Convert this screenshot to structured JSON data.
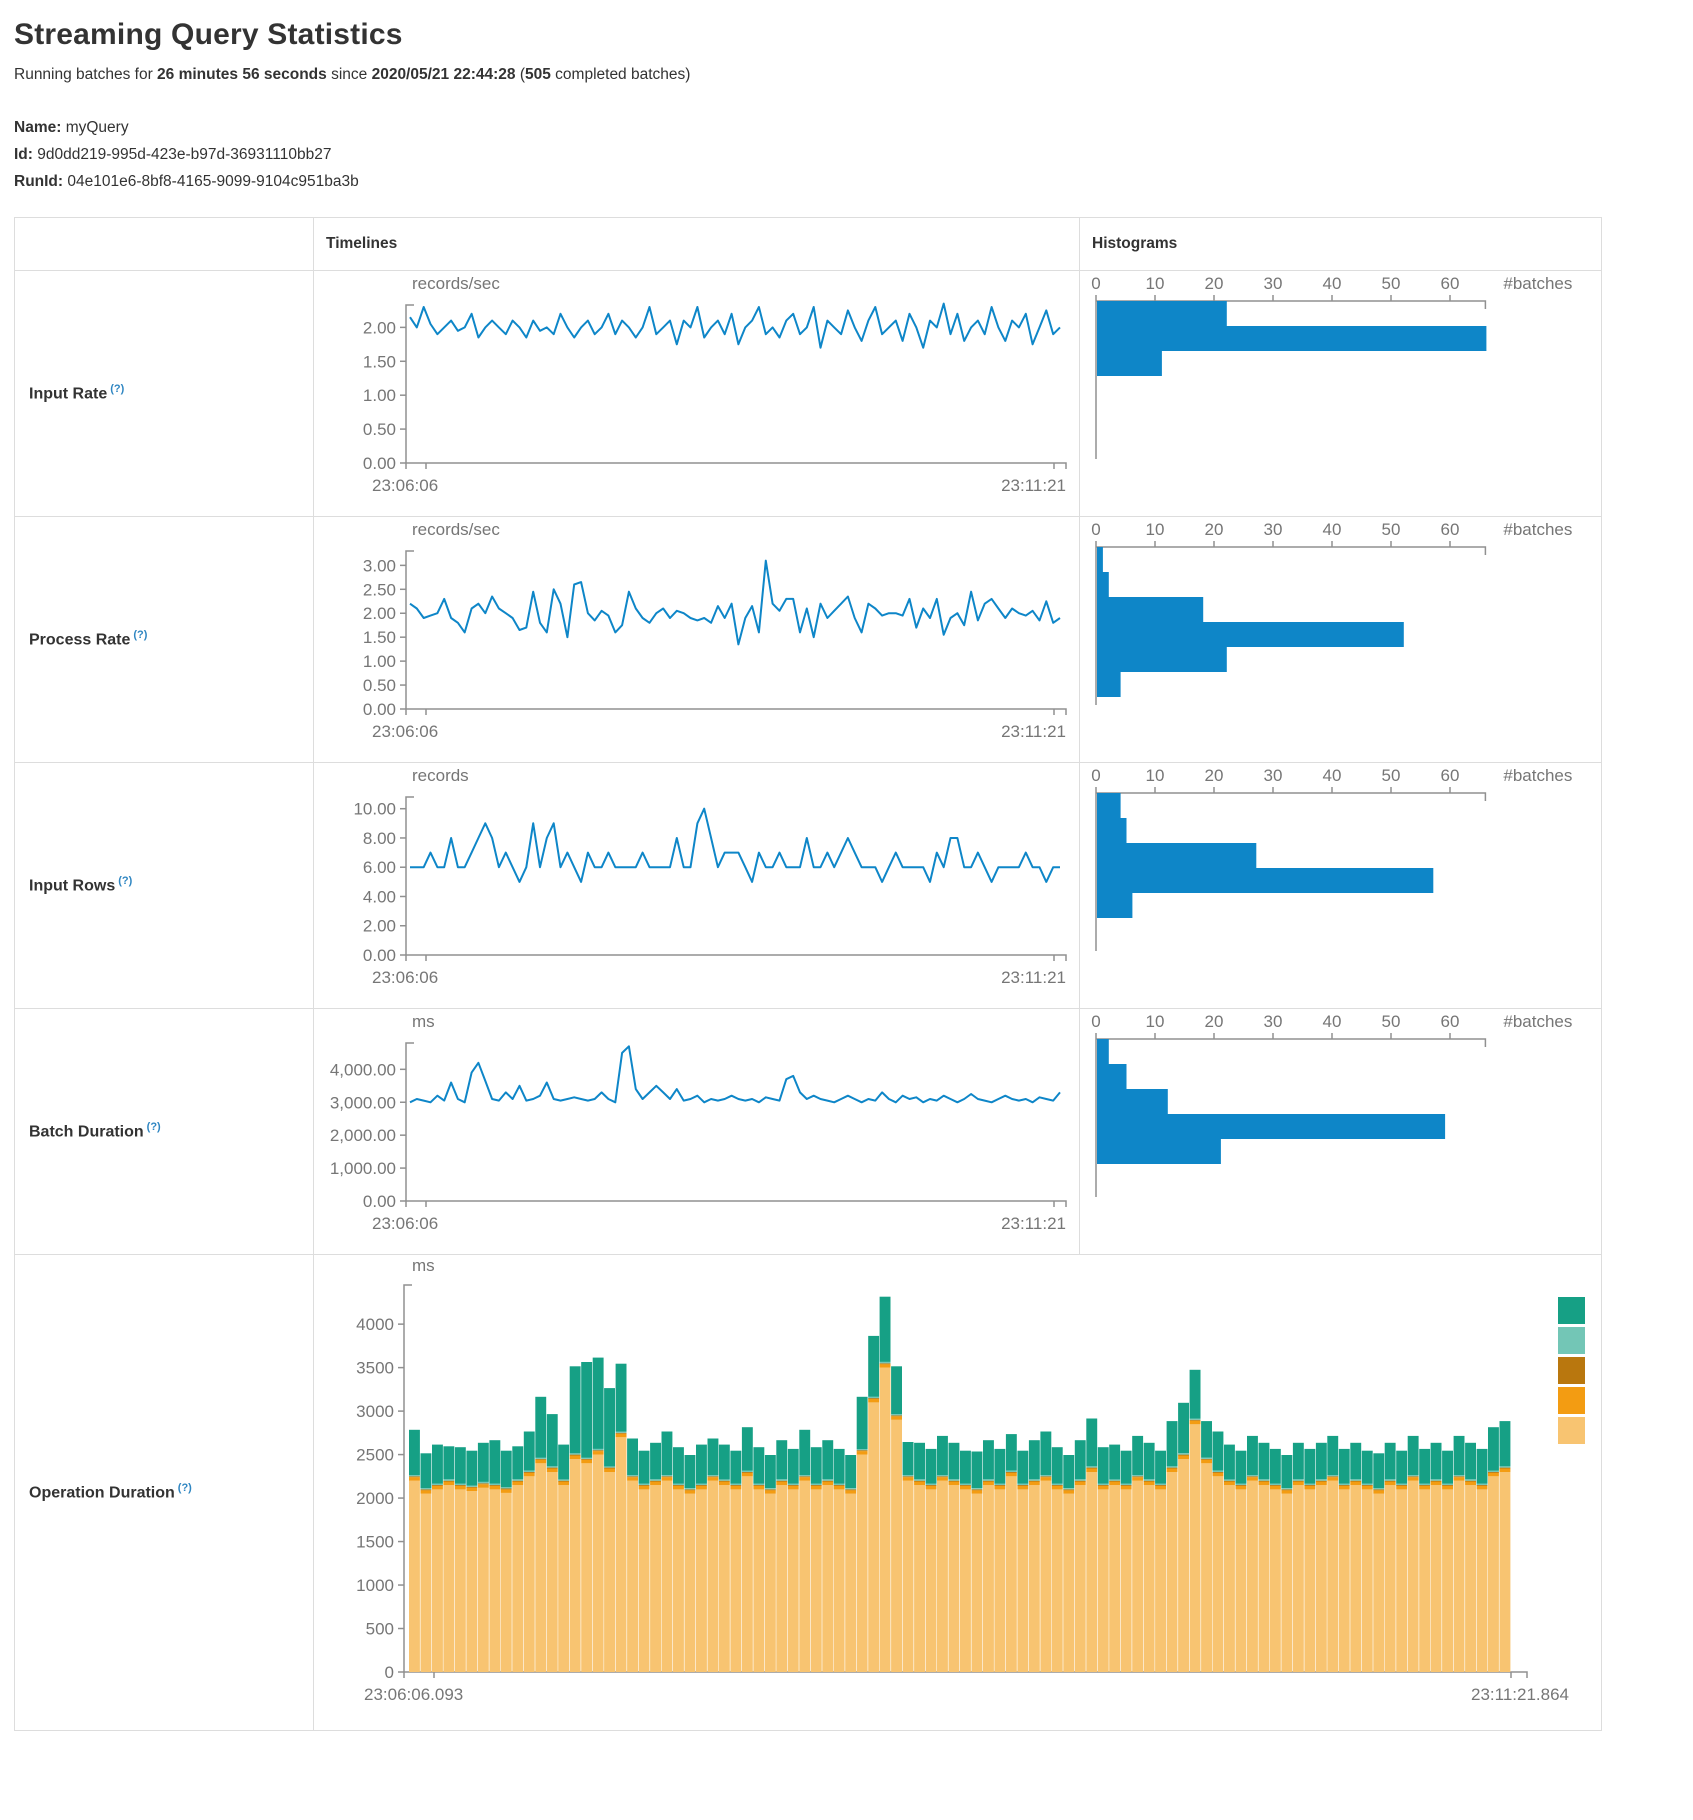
{
  "page": {
    "title": "Streaming Query Statistics",
    "subtitle": {
      "prefix": "Running batches for ",
      "duration": "26 minutes 56 seconds",
      "mid": " since ",
      "start_time": "2020/05/21 22:44:28",
      "paren": " (",
      "completed_count": "505",
      "suffix": " completed batches)"
    },
    "name_label": "Name:",
    "name_value": "myQuery",
    "id_label": "Id:",
    "id_value": "9d0dd219-995d-423e-b97d-36931110bb27",
    "runid_label": "RunId:",
    "runid_value": "04e101e6-8bf8-4165-9099-9104c951ba3b"
  },
  "table": {
    "col_timelines": "Timelines",
    "col_histograms": "Histograms"
  },
  "rows": [
    {
      "label": "Input Rate",
      "help": "(?)"
    },
    {
      "label": "Process Rate",
      "help": "(?)"
    },
    {
      "label": "Input Rows",
      "help": "(?)"
    },
    {
      "label": "Batch Duration",
      "help": "(?)"
    },
    {
      "label": "Operation Duration",
      "help": "(?)"
    }
  ],
  "colors": {
    "line_blue": "#0E86C8",
    "hist_blue": "#0E86C8",
    "axis_gray": "#909090",
    "label_gray": "#767676",
    "teal": "#16A085",
    "light_teal": "#73C6B6",
    "dark_amber": "#B9770E",
    "orange": "#F39C12",
    "light_amber": "#F8C471"
  },
  "chart_data": [
    {
      "id": "input-rate-timeline",
      "type": "line",
      "unit": "records/sec",
      "x_start_label": "23:06:06",
      "x_end_label": "23:11:21",
      "yticks": {
        "values": [
          0,
          0.5,
          1,
          1.5,
          2
        ],
        "labels": [
          "0.00",
          "0.50",
          "1.00",
          "1.50",
          "2.00"
        ]
      },
      "ymax": 2.33,
      "color": "#0E86C8",
      "values": [
        2.15,
        2.0,
        2.3,
        2.05,
        1.9,
        2.0,
        2.1,
        1.95,
        2.0,
        2.2,
        1.85,
        2.0,
        2.1,
        2.0,
        1.9,
        2.1,
        2.0,
        1.85,
        2.1,
        1.95,
        2.0,
        1.9,
        2.2,
        2.0,
        1.85,
        2.0,
        2.1,
        1.9,
        2.0,
        2.2,
        1.9,
        2.1,
        2.0,
        1.85,
        2.0,
        2.3,
        1.9,
        2.0,
        2.1,
        1.75,
        2.1,
        2.0,
        2.3,
        1.85,
        2.0,
        2.1,
        1.9,
        2.2,
        1.75,
        2.0,
        2.1,
        2.3,
        1.9,
        2.0,
        1.85,
        2.1,
        2.2,
        1.9,
        2.0,
        2.3,
        1.7,
        2.1,
        2.0,
        1.9,
        2.25,
        2.0,
        1.8,
        2.1,
        2.3,
        1.9,
        2.0,
        2.1,
        1.8,
        2.2,
        2.0,
        1.7,
        2.1,
        2.0,
        2.35,
        1.9,
        2.2,
        1.8,
        2.0,
        2.1,
        1.9,
        2.3,
        2.0,
        1.8,
        2.1,
        2.0,
        2.2,
        1.75,
        2.0,
        2.25,
        1.9,
        2.0
      ]
    },
    {
      "id": "input-rate-histogram",
      "type": "hbar",
      "xticks": [
        0,
        10,
        20,
        30,
        40,
        50,
        60
      ],
      "axis_max": 66,
      "axis_label": "#batches",
      "color": "#0E86C8",
      "values": [
        22,
        66,
        11
      ]
    },
    {
      "id": "process-rate-timeline",
      "type": "line",
      "unit": "records/sec",
      "x_start_label": "23:06:06",
      "x_end_label": "23:11:21",
      "yticks": {
        "values": [
          0,
          0.5,
          1,
          1.5,
          2,
          2.5,
          3
        ],
        "labels": [
          "0.00",
          "0.50",
          "1.00",
          "1.50",
          "2.00",
          "2.50",
          "3.00"
        ]
      },
      "ymax": 3.3,
      "color": "#0E86C8",
      "values": [
        2.2,
        2.1,
        1.9,
        1.95,
        2.0,
        2.3,
        1.9,
        1.8,
        1.6,
        2.1,
        2.2,
        2.0,
        2.35,
        2.1,
        2.0,
        1.9,
        1.65,
        1.7,
        2.45,
        1.8,
        1.6,
        2.5,
        2.2,
        1.5,
        2.6,
        2.65,
        2.0,
        1.85,
        2.05,
        1.95,
        1.6,
        1.75,
        2.45,
        2.1,
        1.9,
        1.8,
        2.0,
        2.1,
        1.9,
        2.05,
        2.0,
        1.9,
        1.85,
        1.9,
        1.8,
        2.15,
        1.9,
        2.2,
        1.35,
        1.9,
        2.15,
        1.6,
        3.1,
        2.2,
        2.05,
        2.3,
        2.3,
        1.6,
        2.1,
        1.5,
        2.2,
        1.9,
        2.05,
        2.2,
        2.35,
        1.9,
        1.6,
        2.2,
        2.1,
        1.95,
        2.0,
        2.0,
        1.95,
        2.3,
        1.7,
        2.1,
        1.9,
        2.3,
        1.55,
        1.9,
        2.0,
        1.75,
        2.45,
        1.85,
        2.2,
        2.3,
        2.1,
        1.9,
        2.1,
        2.0,
        1.95,
        2.05,
        1.85,
        2.25,
        1.8,
        1.9
      ]
    },
    {
      "id": "process-rate-histogram",
      "type": "hbar",
      "xticks": [
        0,
        10,
        20,
        30,
        40,
        50,
        60
      ],
      "axis_max": 66,
      "axis_label": "#batches",
      "color": "#0E86C8",
      "values": [
        1,
        2,
        18,
        52,
        22,
        4
      ]
    },
    {
      "id": "input-rows-timeline",
      "type": "line",
      "unit": "records",
      "x_start_label": "23:06:06",
      "x_end_label": "23:11:21",
      "yticks": {
        "values": [
          0,
          2,
          4,
          6,
          8,
          10
        ],
        "labels": [
          "0.00",
          "2.00",
          "4.00",
          "6.00",
          "8.00",
          "10.00"
        ]
      },
      "ymax": 10.8,
      "color": "#0E86C8",
      "values": [
        6,
        6,
        6,
        7,
        6,
        6,
        8,
        6,
        6,
        7,
        8,
        9,
        8,
        6,
        7,
        6,
        5,
        6,
        9,
        6,
        8,
        9,
        6,
        7,
        6,
        5,
        7,
        6,
        6,
        7,
        6,
        6,
        6,
        6,
        7,
        6,
        6,
        6,
        6,
        8,
        6,
        6,
        9,
        10,
        8,
        6,
        7,
        7,
        7,
        6,
        5,
        7,
        6,
        6,
        7,
        6,
        6,
        6,
        8,
        6,
        6,
        7,
        6,
        7,
        8,
        7,
        6,
        6,
        6,
        5,
        6,
        7,
        6,
        6,
        6,
        6,
        5,
        7,
        6,
        8,
        8,
        6,
        6,
        7,
        6,
        5,
        6,
        6,
        6,
        6,
        7,
        6,
        6,
        5,
        6,
        6
      ]
    },
    {
      "id": "input-rows-histogram",
      "type": "hbar",
      "xticks": [
        0,
        10,
        20,
        30,
        40,
        50,
        60
      ],
      "axis_max": 66,
      "axis_label": "#batches",
      "color": "#0E86C8",
      "values": [
        4,
        5,
        27,
        57,
        6
      ]
    },
    {
      "id": "batch-duration-timeline",
      "type": "line",
      "unit": "ms",
      "x_start_label": "23:06:06",
      "x_end_label": "23:11:21",
      "yticks": {
        "values": [
          0,
          1000,
          2000,
          3000,
          4000
        ],
        "labels": [
          "0.00",
          "1,000.00",
          "2,000.00",
          "3,000.00",
          "4,000.00"
        ]
      },
      "ymax": 4800,
      "color": "#0E86C8",
      "values": [
        3000,
        3100,
        3050,
        3000,
        3200,
        3050,
        3600,
        3100,
        3000,
        3900,
        4200,
        3650,
        3100,
        3050,
        3300,
        3100,
        3500,
        3050,
        3100,
        3200,
        3600,
        3100,
        3050,
        3100,
        3150,
        3100,
        3050,
        3100,
        3300,
        3100,
        3000,
        4500,
        4700,
        3400,
        3100,
        3300,
        3500,
        3300,
        3100,
        3400,
        3050,
        3100,
        3200,
        3000,
        3100,
        3050,
        3100,
        3200,
        3100,
        3050,
        3100,
        3000,
        3150,
        3100,
        3050,
        3700,
        3800,
        3300,
        3100,
        3200,
        3100,
        3050,
        3000,
        3100,
        3200,
        3100,
        3000,
        3100,
        3050,
        3300,
        3100,
        3000,
        3200,
        3100,
        3150,
        3000,
        3100,
        3050,
        3200,
        3100,
        3000,
        3100,
        3250,
        3100,
        3050,
        3000,
        3100,
        3200,
        3100,
        3050,
        3100,
        3000,
        3150,
        3100,
        3050,
        3300
      ]
    },
    {
      "id": "batch-duration-histogram",
      "type": "hbar",
      "xticks": [
        0,
        10,
        20,
        30,
        40,
        50,
        60
      ],
      "axis_max": 66,
      "axis_label": "#batches",
      "color": "#0E86C8",
      "values": [
        2,
        5,
        12,
        59,
        21
      ]
    },
    {
      "id": "operation-duration",
      "type": "stacked",
      "unit": "ms",
      "x_start_label": "23:06:06.093",
      "x_end_label": "23:11:21.864",
      "yticks": {
        "values": [
          0,
          500,
          1000,
          1500,
          2000,
          2500,
          3000,
          3500,
          4000
        ],
        "labels": [
          "0",
          "500",
          "1000",
          "1500",
          "2000",
          "2500",
          "3000",
          "3500",
          "4000"
        ]
      },
      "ymax": 4450,
      "legend_colors": [
        "#16A085",
        "#73C6B6",
        "#B9770E",
        "#F39C12",
        "#F8C471"
      ],
      "series": [
        {
          "name": "light-amber",
          "color": "#F8C471",
          "values": [
            2200,
            2050,
            2100,
            2150,
            2100,
            2080,
            2120,
            2100,
            2060,
            2150,
            2250,
            2400,
            2300,
            2150,
            2450,
            2400,
            2500,
            2300,
            2700,
            2200,
            2100,
            2150,
            2200,
            2100,
            2050,
            2100,
            2200,
            2150,
            2100,
            2250,
            2100,
            2050,
            2150,
            2100,
            2200,
            2100,
            2150,
            2100,
            2050,
            2500,
            3100,
            3500,
            2900,
            2200,
            2150,
            2100,
            2200,
            2150,
            2100,
            2050,
            2150,
            2100,
            2250,
            2100,
            2150,
            2200,
            2100,
            2050,
            2150,
            2300,
            2100,
            2150,
            2100,
            2200,
            2150,
            2100,
            2300,
            2450,
            2850,
            2400,
            2250,
            2150,
            2100,
            2200,
            2150,
            2100,
            2050,
            2150,
            2100,
            2150,
            2200,
            2100,
            2150,
            2100,
            2050,
            2150,
            2100,
            2200,
            2100,
            2150,
            2100,
            2200,
            2150,
            2100,
            2250,
            2300
          ]
        },
        {
          "name": "orange",
          "color": "#F39C12",
          "constant": 40
        },
        {
          "name": "dark-amber",
          "color": "#B9770E",
          "constant": 10
        },
        {
          "name": "light-teal",
          "color": "#73C6B6",
          "constant": 15
        },
        {
          "name": "teal",
          "color": "#16A085",
          "values": [
            520,
            400,
            450,
            380,
            420,
            400,
            450,
            500,
            420,
            380,
            450,
            700,
            600,
            400,
            1000,
            1100,
            1050,
            900,
            780,
            420,
            380,
            420,
            500,
            420,
            380,
            450,
            420,
            400,
            380,
            500,
            420,
            380,
            450,
            400,
            520,
            420,
            450,
            400,
            380,
            600,
            700,
            750,
            550,
            380,
            420,
            400,
            450,
            420,
            380,
            420,
            450,
            400,
            420,
            380,
            450,
            500,
            420,
            380,
            450,
            550,
            420,
            400,
            380,
            450,
            420,
            380,
            520,
            580,
            560,
            420,
            450,
            400,
            380,
            450,
            420,
            400,
            380,
            420,
            400,
            420,
            450,
            400,
            420,
            380,
            400,
            420,
            380,
            450,
            400,
            420,
            380,
            450,
            420,
            400,
            500,
            520
          ]
        }
      ]
    }
  ]
}
